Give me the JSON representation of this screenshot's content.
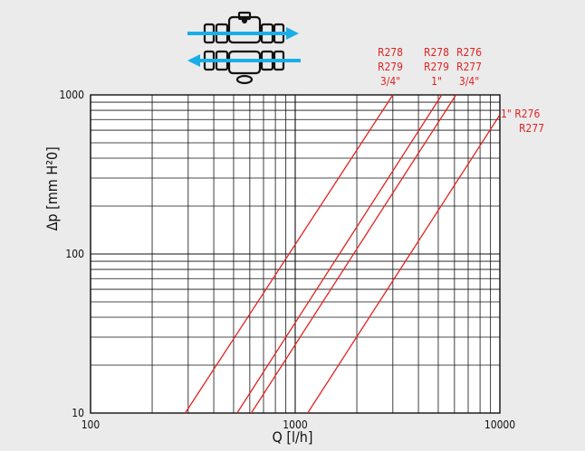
{
  "colors": {
    "background": "#ebebeb",
    "plot_background": "#ffffff",
    "grid": "#111111",
    "curves": "#e32222",
    "arrows": "#1aaee8",
    "text": "#111111"
  },
  "icons": [
    "valve-icon",
    "flow-right-arrow-icon",
    "flow-left-arrow-icon"
  ],
  "chart_data": {
    "type": "line",
    "xscale": "log",
    "yscale": "log",
    "xlim": [
      100,
      10000
    ],
    "ylim": [
      10,
      1000
    ],
    "xlabel": "Q [l/h]",
    "ylabel": "Δp [mm H²0]",
    "x_ticks": [
      "100",
      "1000",
      "10000"
    ],
    "y_ticks": [
      "10",
      "100",
      "1000"
    ],
    "grid": true,
    "series": [
      {
        "label_lines": [
          "R278",
          "R279",
          "3/4\""
        ],
        "points": [
          [
            290,
            10
          ],
          [
            3000,
            1000
          ]
        ]
      },
      {
        "label_lines": [
          "R278",
          "R279",
          "1\""
        ],
        "points": [
          [
            520,
            10
          ],
          [
            5200,
            1000
          ]
        ]
      },
      {
        "label_lines": [
          "R276",
          "R277",
          "3/4\""
        ],
        "points": [
          [
            610,
            10
          ],
          [
            6100,
            1000
          ]
        ]
      },
      {
        "label_lines": [
          "1\" R276",
          "R277"
        ],
        "points": [
          [
            1150,
            10
          ],
          [
            10000,
            750
          ]
        ]
      }
    ]
  }
}
